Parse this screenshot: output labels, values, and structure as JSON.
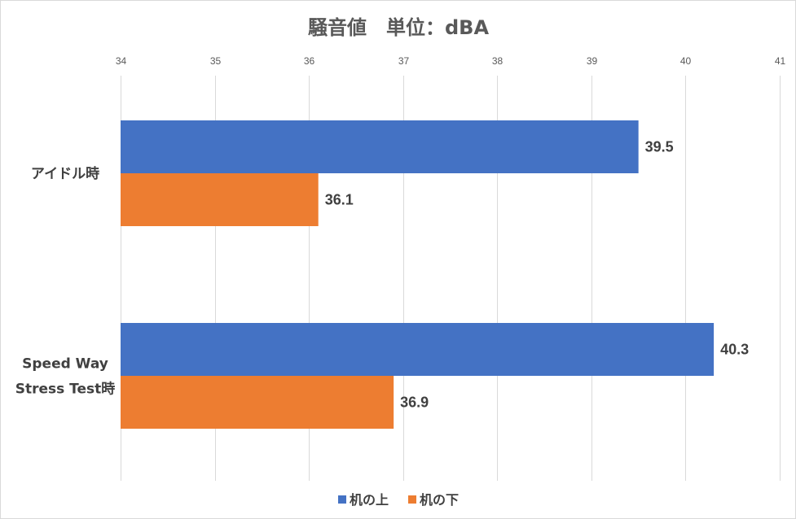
{
  "chart_data": {
    "type": "bar",
    "orientation": "horizontal",
    "title": "騒音値　単位：dBA",
    "categories": [
      [
        "アイドル時"
      ],
      [
        "Speed Way",
        "Stress Test時"
      ]
    ],
    "series": [
      {
        "name": "机の上",
        "color": "#4472c4",
        "values": [
          39.5,
          40.3
        ]
      },
      {
        "name": "机の下",
        "color": "#ed7d31",
        "values": [
          36.1,
          36.9
        ]
      }
    ],
    "xlim": [
      34,
      41
    ],
    "xticks": [
      34,
      35,
      36,
      37,
      38,
      39,
      40,
      41
    ],
    "x_axis_position": "top",
    "grid": true,
    "legend": "bottom",
    "data_labels": true
  }
}
